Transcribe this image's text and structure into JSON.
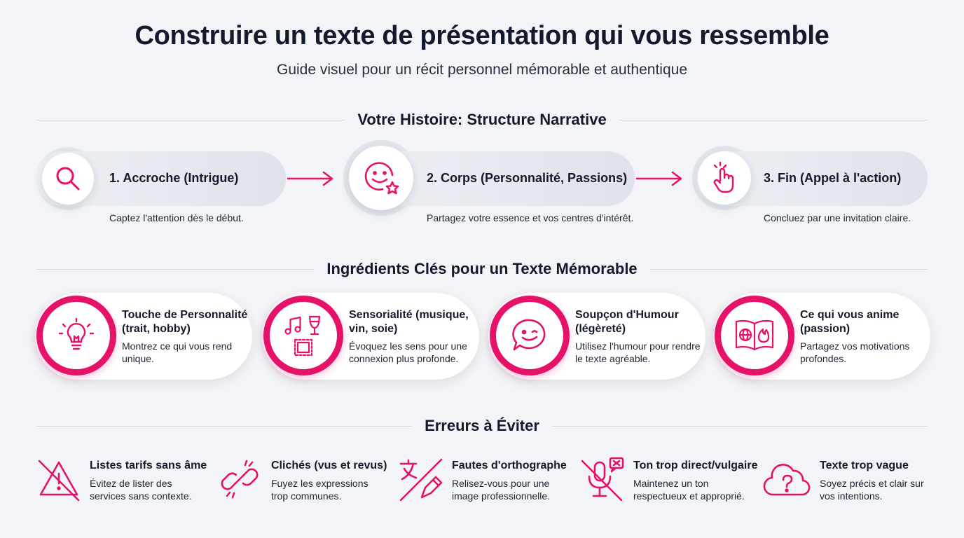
{
  "header": {
    "title": "Construire un texte de présentation qui vous ressemble",
    "subtitle": "Guide visuel pour un récit personnel mémorable et authentique"
  },
  "colors": {
    "accent": "#e6126a",
    "text": "#15192b",
    "background": "#f3f4f7"
  },
  "narrative": {
    "heading": "Votre Histoire: Structure Narrative",
    "steps": [
      {
        "title": "1. Accroche (Intrigue)",
        "description": "Captez l'attention dès le début.",
        "icon": "magnifier-icon"
      },
      {
        "title": "2. Corps (Personnalité, Passions)",
        "description": "Partagez votre essence et vos centres d'intérêt.",
        "icon": "smiley-star-icon"
      },
      {
        "title": "3. Fin (Appel à l'action)",
        "description": "Concluez par une invitation claire.",
        "icon": "tap-hand-icon"
      }
    ]
  },
  "ingredients": {
    "heading": "Ingrédients Clés pour un Texte Mémorable",
    "items": [
      {
        "title": "Touche de Personnalité (trait, hobby)",
        "description": "Montrez ce qui vous rend unique.",
        "icon": "lightbulb-icon"
      },
      {
        "title": "Sensorialité (musique, vin, soie)",
        "description": "Évoquez les sens pour une connexion plus profonde.",
        "icon": "senses-icon"
      },
      {
        "title": "Soupçon d'Humour (légèreté)",
        "description": "Utilisez l'humour pour rendre le texte agréable.",
        "icon": "winking-chat-icon"
      },
      {
        "title": "Ce qui vous anime (passion)",
        "description": "Partagez vos motivations profondes.",
        "icon": "open-book-icon"
      }
    ]
  },
  "errors": {
    "heading": "Erreurs à Éviter",
    "items": [
      {
        "title": "Listes tarifs sans âme",
        "description": "Évitez de lister des services sans contexte.",
        "icon": "warning-crossed-icon"
      },
      {
        "title": "Clichés (vus et revus)",
        "description": "Fuyez les expressions trop communes.",
        "icon": "broken-link-icon"
      },
      {
        "title": "Fautes d'orthographe",
        "description": "Relisez-vous pour une image professionnelle.",
        "icon": "translate-pen-icon"
      },
      {
        "title": "Ton trop direct/vulgaire",
        "description": "Maintenez un ton respectueux et approprié.",
        "icon": "muted-mic-icon"
      },
      {
        "title": "Texte trop vague",
        "description": "Soyez précis et clair sur vos intentions.",
        "icon": "cloud-question-icon"
      }
    ]
  }
}
